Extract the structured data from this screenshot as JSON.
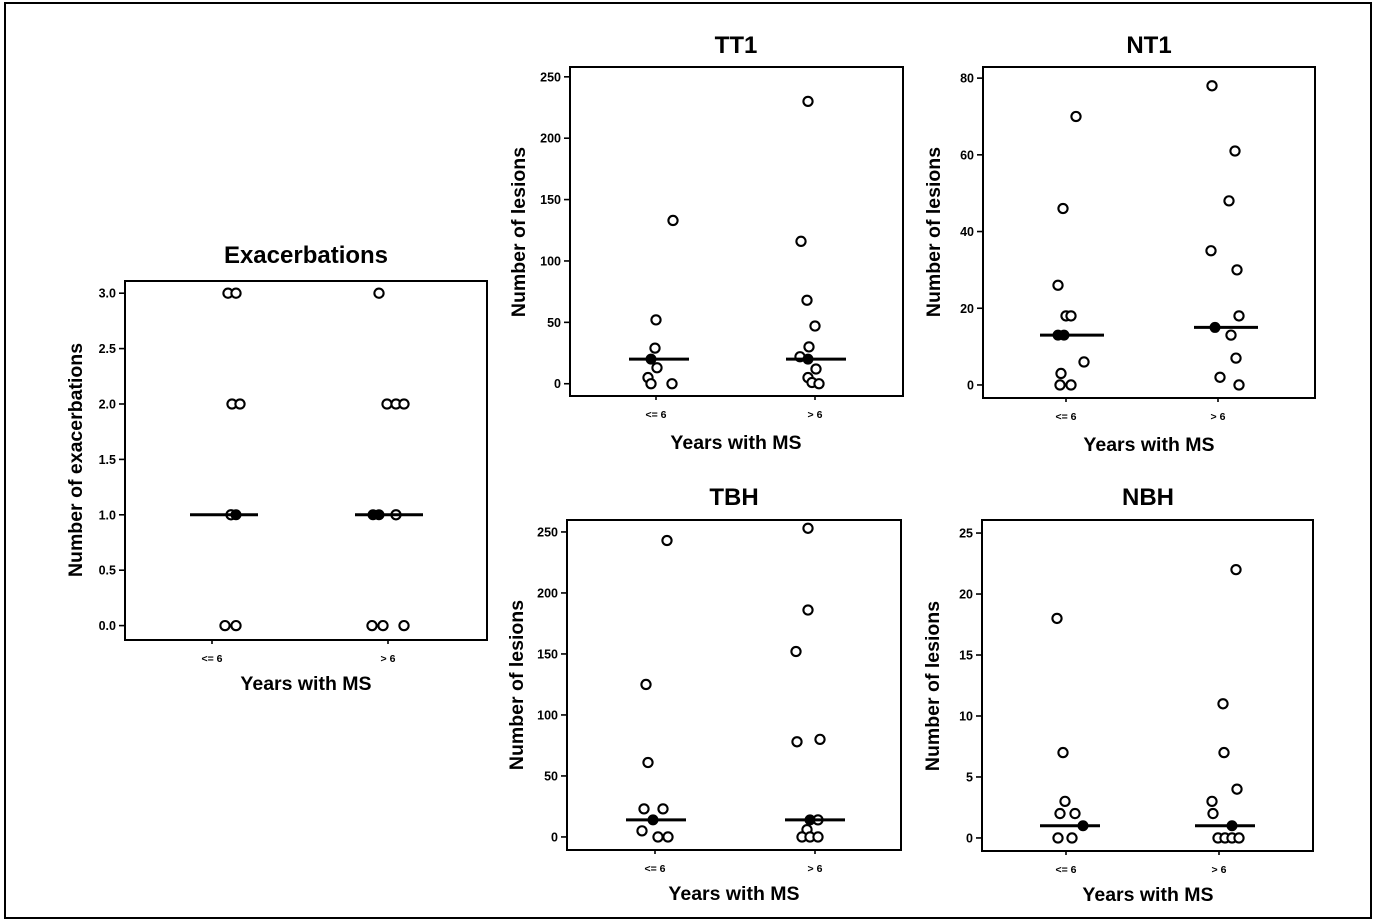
{
  "chart_data": [
    {
      "type": "scatter",
      "title": "Exacerbations",
      "xlabel": "Years with MS",
      "ylabel": "Number of exacerbations",
      "categories": [
        "<= 6",
        "> 6"
      ],
      "yticks": [
        "0.0",
        "0.5",
        "1.0",
        "1.5",
        "2.0",
        "2.5",
        "3.0"
      ],
      "ylim": [
        -0.13,
        3.11
      ],
      "groups": [
        {
          "open": [
            3,
            3,
            2,
            2,
            1,
            0,
            0
          ],
          "filled": [
            1
          ],
          "median": 1
        },
        {
          "open": [
            3,
            2,
            2,
            2,
            1,
            0,
            0,
            0
          ],
          "filled": [
            1,
            1
          ],
          "median": 1
        }
      ]
    },
    {
      "type": "scatter",
      "title": "TT1",
      "xlabel": "Years with MS",
      "ylabel": "Number of lesions",
      "categories": [
        "<= 6",
        "> 6"
      ],
      "yticks": [
        "0",
        "50",
        "100",
        "150",
        "200",
        "250"
      ],
      "ylim": [
        -10,
        258
      ],
      "groups": [
        {
          "open": [
            133,
            52,
            29,
            13,
            5,
            0,
            0
          ],
          "filled": [
            20
          ],
          "median": 20
        },
        {
          "open": [
            230,
            116,
            68,
            47,
            30,
            22,
            12,
            5,
            1,
            0
          ],
          "filled": [
            20
          ],
          "median": 20
        }
      ]
    },
    {
      "type": "scatter",
      "title": "NT1",
      "xlabel": "Years with MS",
      "ylabel": "Number of lesions",
      "categories": [
        "<= 6",
        "> 6"
      ],
      "yticks": [
        "0",
        "20",
        "40",
        "60",
        "80"
      ],
      "ylim": [
        -3.4,
        82.9
      ],
      "groups": [
        {
          "open": [
            70,
            46,
            26,
            18,
            18,
            6,
            3,
            0,
            0
          ],
          "filled": [
            13,
            13
          ],
          "median": 13
        },
        {
          "open": [
            78,
            61,
            48,
            35,
            30,
            18,
            13,
            7,
            2,
            0
          ],
          "filled": [
            15
          ],
          "median": 15
        }
      ]
    },
    {
      "type": "scatter",
      "title": "TBH",
      "xlabel": "Years with MS",
      "ylabel": "Number of lesions",
      "categories": [
        "<= 6",
        "> 6"
      ],
      "yticks": [
        "0",
        "50",
        "100",
        "150",
        "200",
        "250"
      ],
      "ylim": [
        -10.7,
        259.8
      ],
      "groups": [
        {
          "open": [
            243,
            125,
            61,
            23,
            23,
            5,
            0,
            0
          ],
          "filled": [
            14
          ],
          "median": 14
        },
        {
          "open": [
            253,
            186,
            152,
            80,
            78,
            14,
            6,
            0,
            0,
            0
          ],
          "filled": [
            14
          ],
          "median": 14
        }
      ]
    },
    {
      "type": "scatter",
      "title": "NBH",
      "xlabel": "Years with MS",
      "ylabel": "Number of lesions",
      "categories": [
        "<= 6",
        "> 6"
      ],
      "yticks": [
        "0",
        "5",
        "10",
        "15",
        "20",
        "25"
      ],
      "ylim": [
        -1.07,
        26.07
      ],
      "groups": [
        {
          "open": [
            18,
            7,
            3,
            2,
            2,
            0,
            0
          ],
          "filled": [
            1
          ],
          "median": 1
        },
        {
          "open": [
            22,
            11,
            7,
            4,
            3,
            2,
            0,
            0,
            0,
            0
          ],
          "filled": [
            1
          ],
          "median": 1
        }
      ]
    }
  ]
}
